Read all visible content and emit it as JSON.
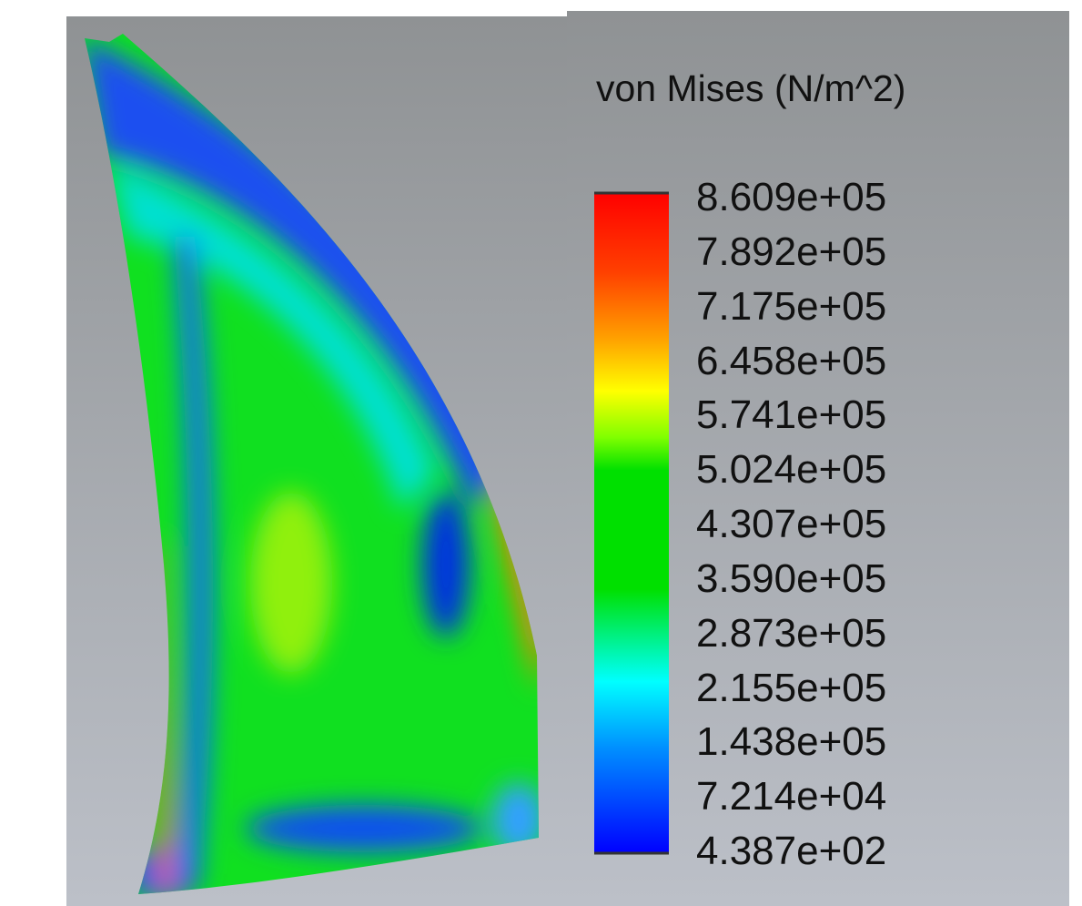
{
  "legend": {
    "title": "von Mises (N/m^2)",
    "labels": [
      "8.609e+05",
      "7.892e+05",
      "7.175e+05",
      "6.458e+05",
      "5.741e+05",
      "5.024e+05",
      "4.307e+05",
      "3.590e+05",
      "2.873e+05",
      "2.155e+05",
      "1.438e+05",
      "7.214e+04",
      "4.387e+02"
    ]
  }
}
